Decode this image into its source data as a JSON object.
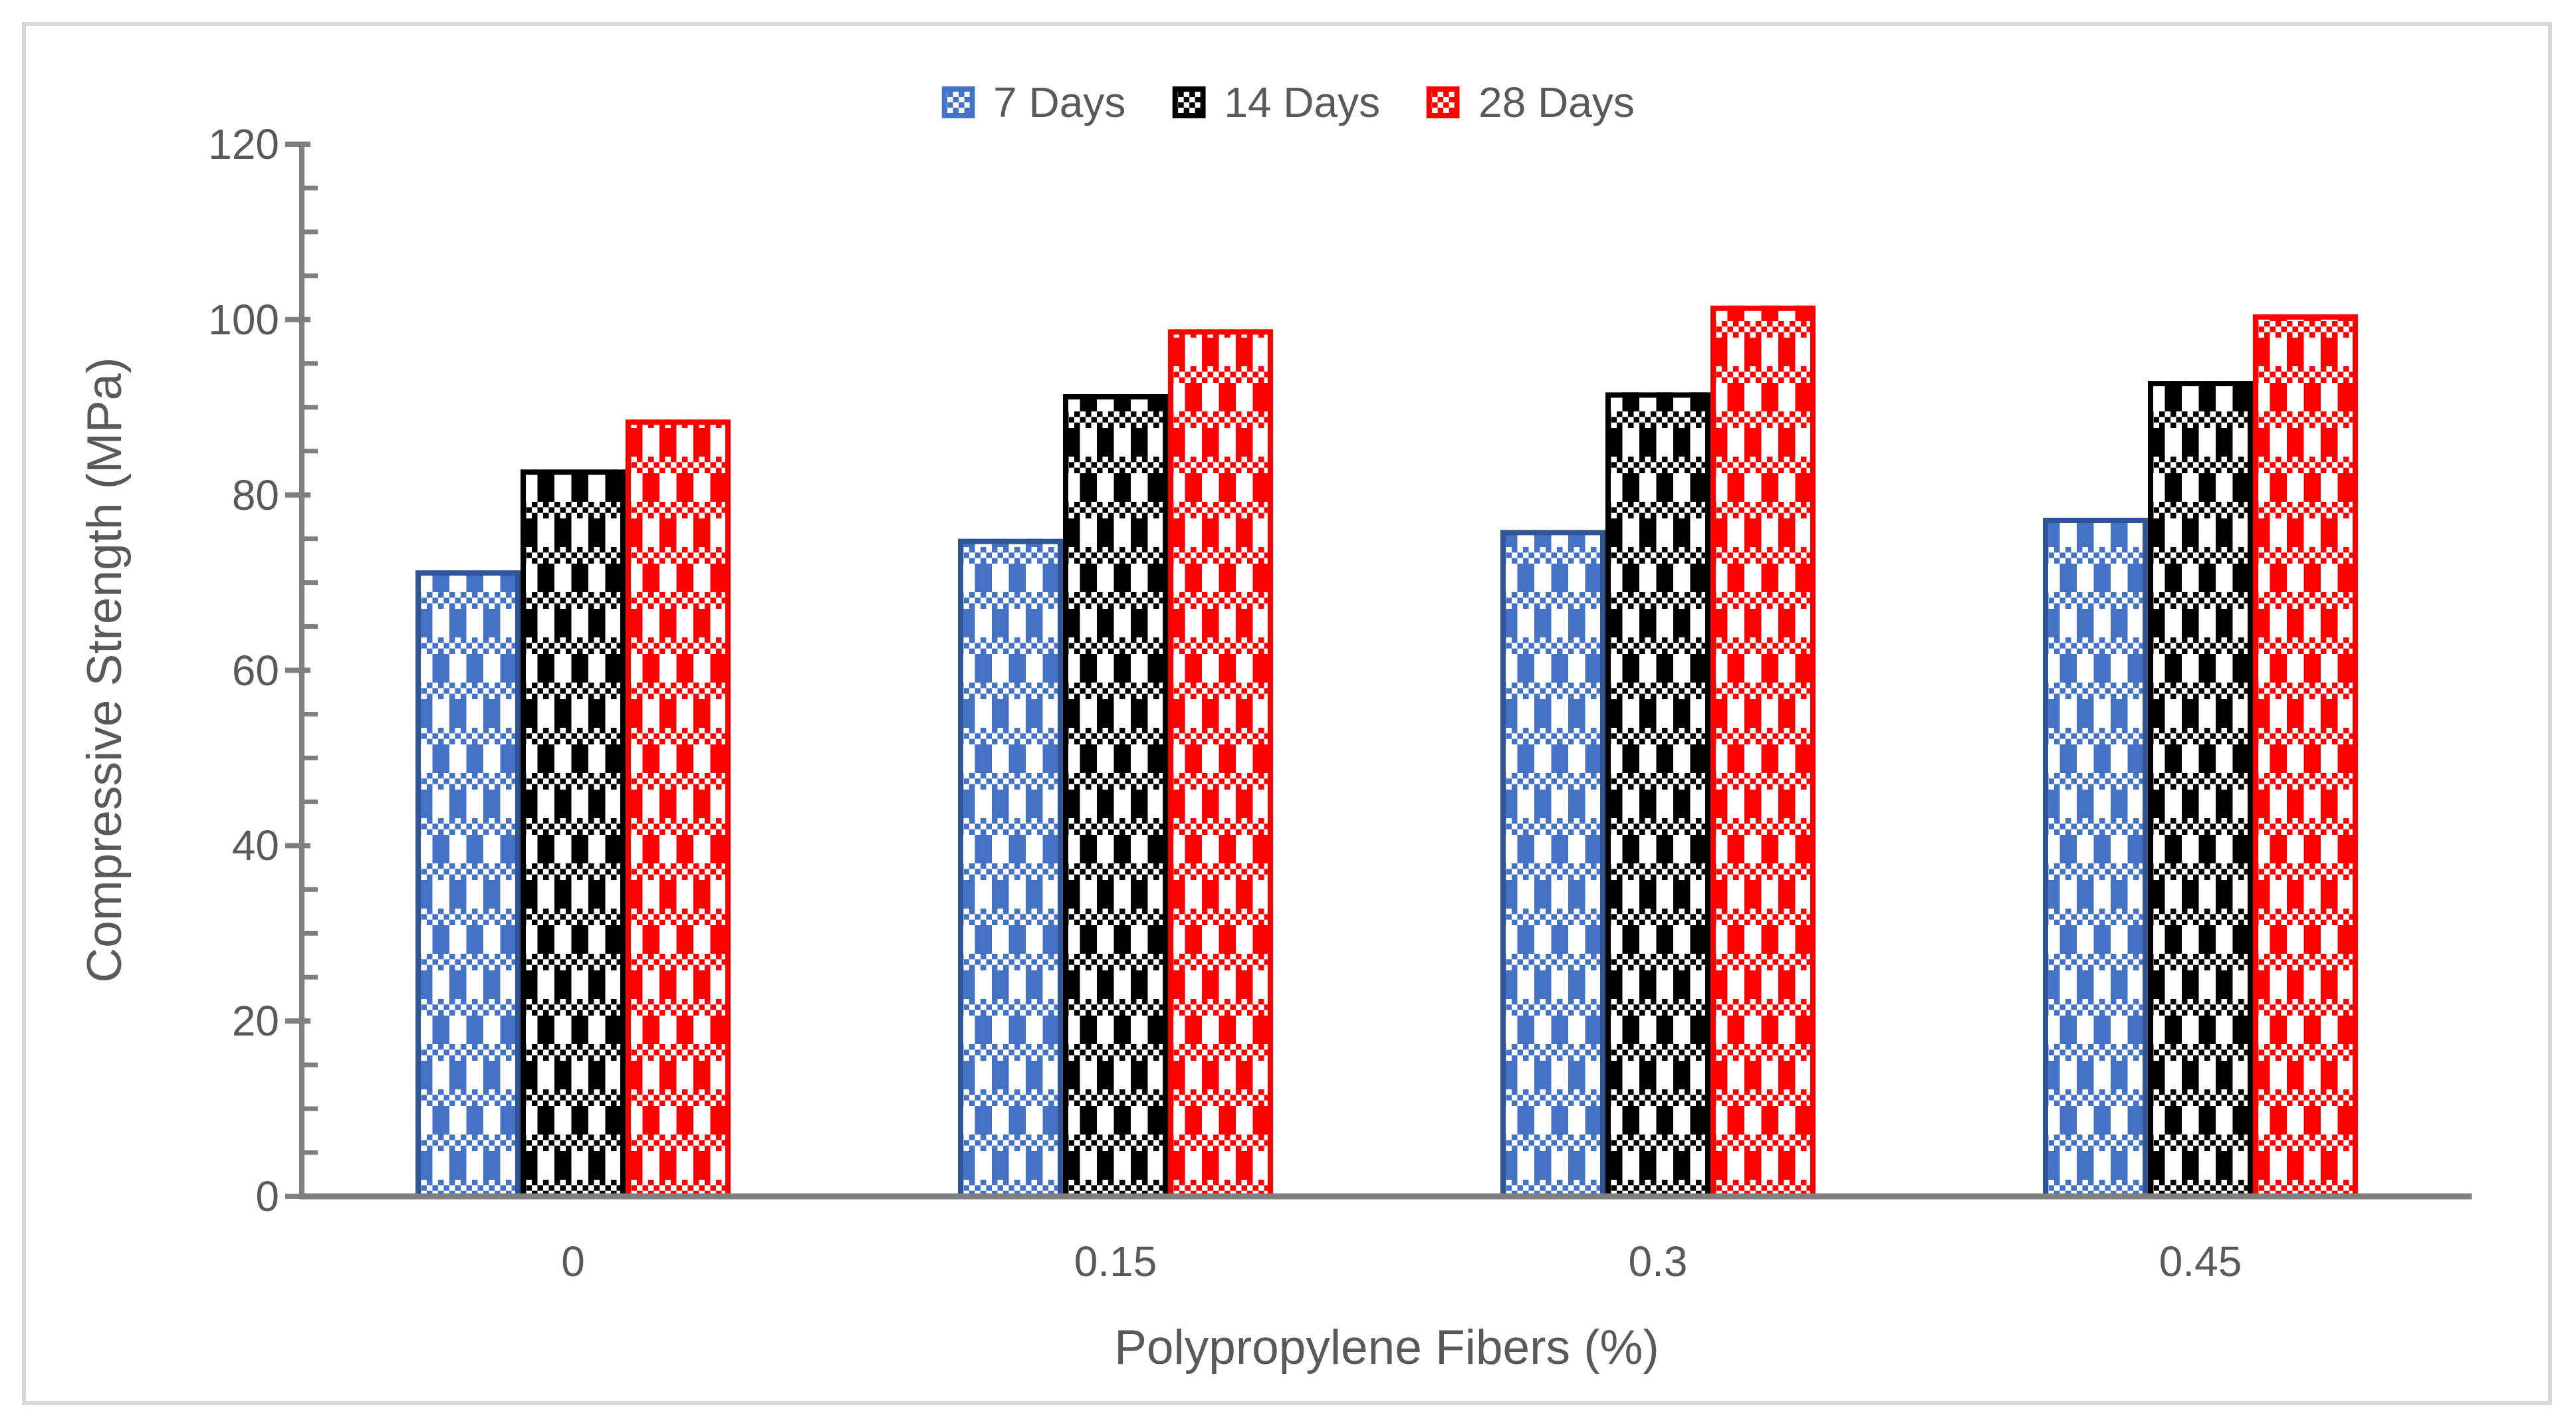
{
  "figure": {
    "background": "#FFFFFF",
    "border_color": "#D9D9D9",
    "text_color": "#595959",
    "axis_color": "#7F7F7F"
  },
  "legend": {
    "position": "top-center",
    "items": [
      {
        "label": "7 Days",
        "color": "#4472C4",
        "border_color": "#2F5597"
      },
      {
        "label": "14 Days",
        "color": "#000000",
        "border_color": "#000000"
      },
      {
        "label": "28 Days",
        "color": "#FF0000",
        "border_color": "#FF0000"
      }
    ]
  },
  "axes": {
    "y": {
      "title": "Compressive Strength (MPa)",
      "min": 0,
      "max": 120,
      "major_step": 20,
      "minor_step": 5,
      "tick_labels": [
        "120",
        "100",
        "80",
        "60",
        "40",
        "20",
        "0"
      ]
    },
    "x": {
      "title": "Polypropylene Fibers (%)",
      "categories": [
        "0",
        "0.15",
        "0.3",
        "0.45"
      ]
    }
  },
  "chart_data": {
    "type": "bar",
    "title": "",
    "categories": [
      "0",
      "0.15",
      "0.3",
      "0.45"
    ],
    "series": [
      {
        "name": "7 Days",
        "color": "#4472C4",
        "border_color": "#2F5597",
        "values": [
          71.4,
          75.0,
          76.0,
          77.4
        ]
      },
      {
        "name": "14 Days",
        "color": "#000000",
        "border_color": "#000000",
        "values": [
          82.9,
          91.5,
          91.7,
          93.0
        ]
      },
      {
        "name": "28 Days",
        "color": "#FF0000",
        "border_color": "#FF0000",
        "values": [
          88.6,
          98.9,
          101.6,
          100.6
        ]
      }
    ],
    "xlabel": "Polypropylene Fibers (%)",
    "ylabel": "Compressive Strength (MPa)",
    "ylim": [
      0,
      120
    ],
    "grid": false,
    "legend_position": "top",
    "bar_fill_style": "checker-plaid-pattern"
  }
}
